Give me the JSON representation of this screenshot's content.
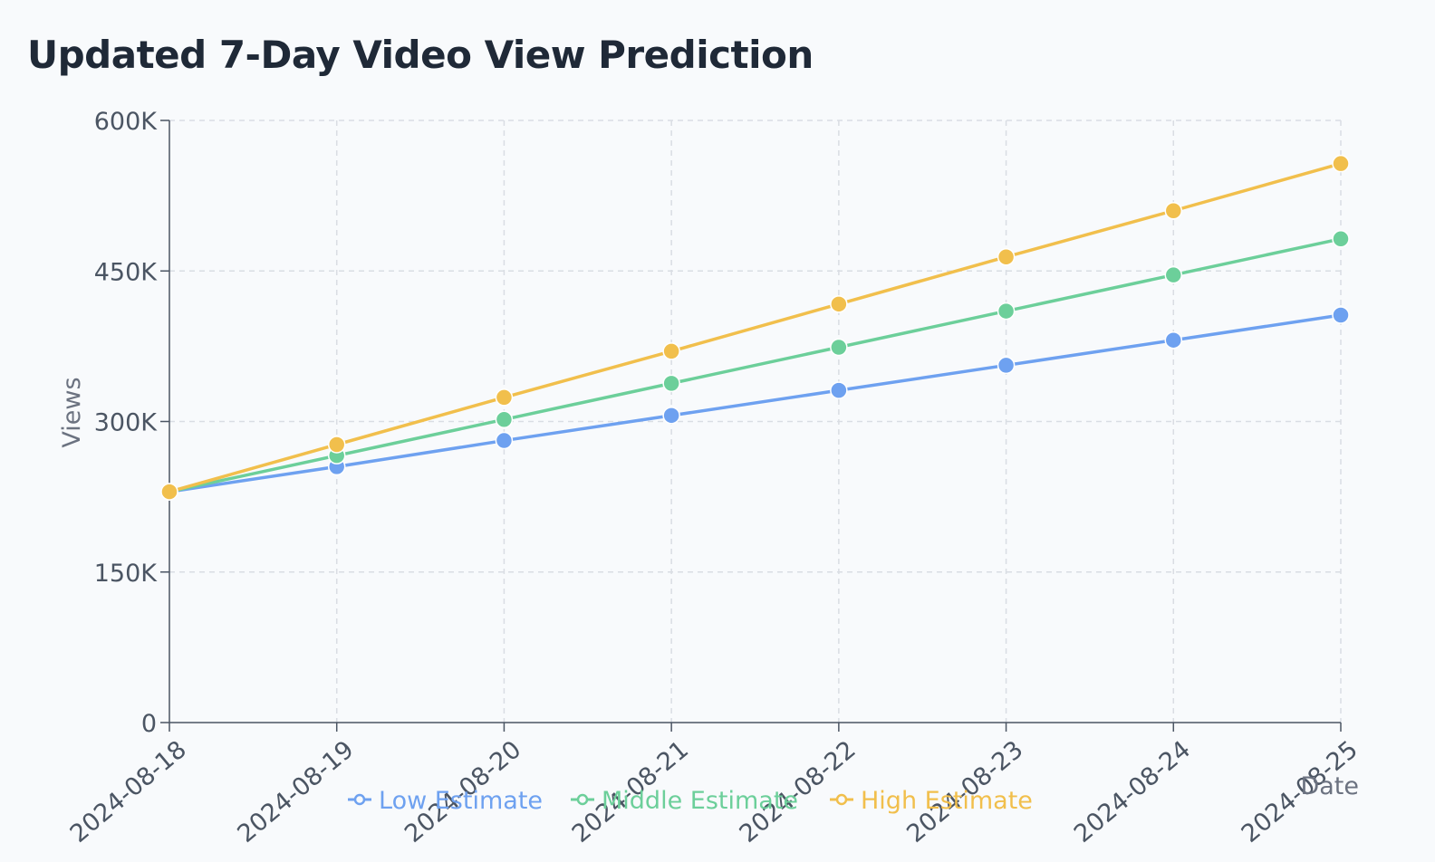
{
  "title": "Updated 7-Day Video View Prediction",
  "chart_data": {
    "type": "line",
    "title": "Updated 7-Day Video View Prediction",
    "xlabel": "Date",
    "ylabel": "Views",
    "categories": [
      "2024-08-18",
      "2024-08-19",
      "2024-08-20",
      "2024-08-21",
      "2024-08-22",
      "2024-08-23",
      "2024-08-24",
      "2024-08-25"
    ],
    "y_ticks": [
      "0",
      "150K",
      "300K",
      "450K",
      "600K"
    ],
    "y_tick_values": [
      0,
      150000,
      300000,
      450000,
      600000
    ],
    "ylim": [
      0,
      600000
    ],
    "grid": true,
    "legend_position": "bottom",
    "series": [
      {
        "name": "Low Estimate",
        "color": "#6ea1f0",
        "values": [
          230000,
          255000,
          281000,
          306000,
          331000,
          356000,
          381000,
          406000
        ]
      },
      {
        "name": "Middle Estimate",
        "color": "#6ccf9a",
        "values": [
          230000,
          266000,
          302000,
          338000,
          374000,
          410000,
          446000,
          482000
        ]
      },
      {
        "name": "High Estimate",
        "color": "#f1bf4c",
        "values": [
          230000,
          277000,
          324000,
          370000,
          417000,
          464000,
          510000,
          557000
        ]
      }
    ]
  }
}
